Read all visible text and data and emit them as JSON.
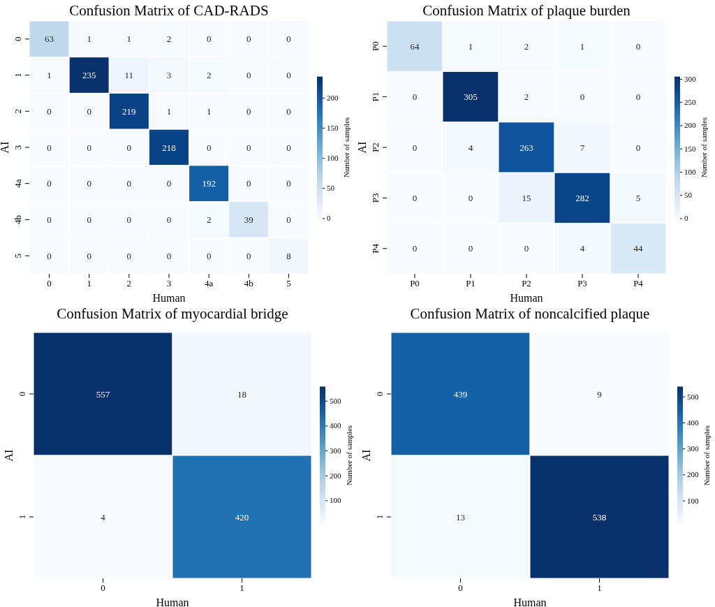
{
  "chart_data": [
    {
      "type": "heatmap",
      "title": "Confusion Matrix of CAD-RADS",
      "xlabel": "Human",
      "ylabel": "AI",
      "clabel": "Number of samples",
      "categories": [
        "0",
        "1",
        "2",
        "3",
        "4a",
        "4b",
        "5"
      ],
      "y_categories": [
        "0",
        "1",
        "2",
        "3",
        "4a",
        "4b",
        "5"
      ],
      "cells": [
        [
          63,
          1,
          1,
          2,
          0,
          0,
          0
        ],
        [
          1,
          235,
          11,
          3,
          2,
          0,
          0
        ],
        [
          0,
          0,
          219,
          1,
          1,
          0,
          0
        ],
        [
          0,
          0,
          0,
          218,
          0,
          0,
          0
        ],
        [
          0,
          0,
          0,
          0,
          192,
          0,
          0
        ],
        [
          0,
          0,
          0,
          0,
          2,
          39,
          0
        ],
        [
          0,
          0,
          0,
          0,
          0,
          0,
          8
        ]
      ],
      "clim": [
        0,
        235
      ],
      "cticks": [
        0,
        50,
        100,
        150,
        200
      ],
      "data_labels": true
    },
    {
      "type": "heatmap",
      "title": "Confusion Matrix of plaque burden",
      "xlabel": "Human",
      "ylabel": "AI",
      "clabel": "Number of samples",
      "categories": [
        "P0",
        "P1",
        "P2",
        "P3",
        "P4"
      ],
      "y_categories": [
        "P0",
        "P1",
        "P2",
        "P3",
        "P4"
      ],
      "cells": [
        [
          64,
          1,
          2,
          1,
          0
        ],
        [
          0,
          305,
          2,
          0,
          0
        ],
        [
          0,
          4,
          263,
          7,
          0
        ],
        [
          0,
          0,
          15,
          282,
          5
        ],
        [
          0,
          0,
          0,
          4,
          44
        ]
      ],
      "clim": [
        0,
        305
      ],
      "cticks": [
        0,
        50,
        100,
        150,
        200,
        250,
        300
      ],
      "data_labels": true
    },
    {
      "type": "heatmap",
      "title": "Confusion Matrix of myocardial bridge",
      "xlabel": "Human",
      "ylabel": "AI",
      "clabel": "Number of samples",
      "categories": [
        "0",
        "1"
      ],
      "y_categories": [
        "0",
        "1"
      ],
      "cells": [
        [
          557,
          18
        ],
        [
          4,
          420
        ]
      ],
      "clim": [
        4,
        557
      ],
      "cticks": [
        100,
        200,
        300,
        400,
        500
      ],
      "data_labels": true
    },
    {
      "type": "heatmap",
      "title": "Confusion Matrix of noncalcified plaque",
      "xlabel": "Human",
      "ylabel": "AI",
      "clabel": "Number of samples",
      "categories": [
        "0",
        "1"
      ],
      "y_categories": [
        "0",
        "1"
      ],
      "cells": [
        [
          439,
          9
        ],
        [
          13,
          538
        ]
      ],
      "clim": [
        9,
        538
      ],
      "cticks": [
        100,
        200,
        300,
        400,
        500
      ],
      "data_labels": true
    }
  ]
}
